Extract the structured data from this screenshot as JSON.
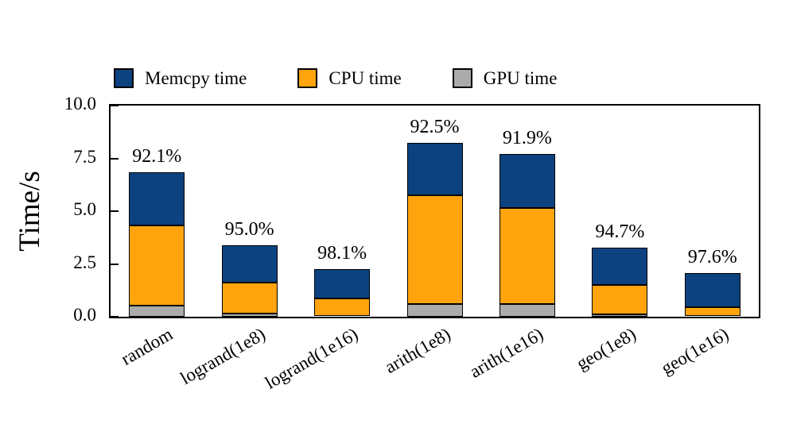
{
  "chart_data": {
    "type": "bar",
    "stacked": true,
    "title": "",
    "ylabel": "Time/s",
    "xlabel": "",
    "ylim": [
      0,
      10
    ],
    "yticks": [
      0.0,
      2.5,
      5.0,
      7.5,
      10.0
    ],
    "grid": false,
    "legend_position": "top",
    "categories": [
      "random",
      "logrand(1e8)",
      "logrand(1e16)",
      "arith(1e8)",
      "arith(1e16)",
      "geo(1e8)",
      "geo(1e16)"
    ],
    "series": [
      {
        "name": "Memcpy time",
        "color": "#0d4280",
        "values": [
          2.52,
          1.8,
          1.4,
          2.5,
          2.55,
          1.78,
          1.6
        ]
      },
      {
        "name": "CPU time",
        "color": "#ffa40d",
        "values": [
          3.82,
          1.45,
          0.83,
          5.15,
          4.55,
          1.38,
          0.43
        ]
      },
      {
        "name": "GPU time",
        "color": "#ababab",
        "values": [
          0.52,
          0.15,
          0.02,
          0.6,
          0.6,
          0.12,
          0.02
        ]
      }
    ],
    "bar_labels": [
      "92.1%",
      "95.0%",
      "98.1%",
      "92.5%",
      "91.9%",
      "94.7%",
      "97.6%"
    ],
    "colors": {
      "axis": "#000000",
      "background": "#ffffff",
      "text": "#000000"
    }
  }
}
